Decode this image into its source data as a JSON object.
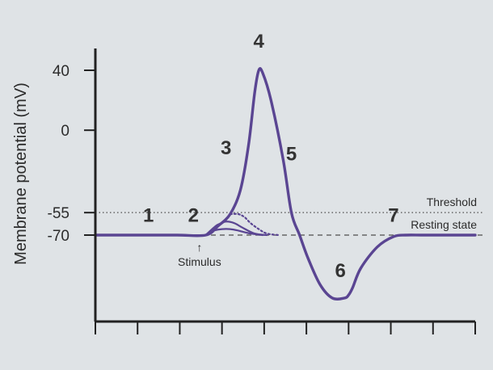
{
  "colors": {
    "background": "#dfe3e6",
    "curve": "#5a4592",
    "axis": "#222222",
    "reference_line": "#666666"
  },
  "chart_data": {
    "type": "line",
    "title": "",
    "xlabel": "",
    "ylabel": "Membrane potential (mV)",
    "yticks": [
      40,
      0,
      -55,
      -70
    ],
    "ytick_labels": [
      "40",
      "0",
      "-55",
      "-70"
    ],
    "ylim": [
      -120,
      60
    ],
    "xlim": [
      0,
      9.3
    ],
    "grid": false,
    "x_tick_count": 10,
    "series": [
      {
        "style": "solid",
        "x": [
          0,
          1,
          2,
          2.7,
          3.0,
          3.3,
          3.55,
          3.75,
          3.9,
          4.0,
          4.1,
          4.3,
          4.6,
          4.8,
          5.0,
          5.2,
          5.5,
          5.8,
          6.1,
          6.2,
          6.3,
          6.5,
          6.9,
          7.3,
          7.6,
          8.0,
          8.5,
          9.3
        ],
        "y": [
          -70,
          -70,
          -70,
          -70,
          -64,
          -56,
          -40,
          -10,
          25,
          40,
          38,
          20,
          -20,
          -55,
          -70,
          -85,
          -103,
          -112,
          -112,
          -110,
          -105,
          -92,
          -78,
          -71,
          -70,
          -70,
          -70,
          -70
        ]
      },
      {
        "style": "dotted",
        "x": [
          3.3,
          3.5,
          3.65,
          3.8,
          4.0,
          4.2,
          4.5
        ],
        "y": [
          -56,
          -56,
          -58,
          -62,
          -66,
          -69,
          -70
        ]
      },
      {
        "style": "solid",
        "x": [
          2.7,
          2.9,
          3.0,
          3.2,
          3.4,
          3.6,
          3.9,
          4.2
        ],
        "y": [
          -70,
          -65,
          -63,
          -61,
          -62,
          -65,
          -69,
          -70
        ]
      },
      {
        "style": "solid",
        "x": [
          2.7,
          2.9,
          3.1,
          3.3,
          3.5,
          3.8,
          4.1
        ],
        "y": [
          -70,
          -67,
          -66,
          -66,
          -67,
          -69,
          -70
        ]
      }
    ],
    "reference_lines": [
      {
        "label": "Threshold",
        "y": -55,
        "style": "dotted"
      },
      {
        "label": "Resting state",
        "y": -70,
        "style": "dashed"
      }
    ],
    "phase_labels": [
      {
        "text": "1",
        "x": 1.3,
        "y": -61
      },
      {
        "text": "2",
        "x": 2.4,
        "y": -61
      },
      {
        "text": "3",
        "x": 3.2,
        "y": -16
      },
      {
        "text": "4",
        "x": 4.0,
        "y": 55
      },
      {
        "text": "5",
        "x": 4.8,
        "y": -20
      },
      {
        "text": "6",
        "x": 6.0,
        "y": -98
      },
      {
        "text": "7",
        "x": 7.3,
        "y": -61
      }
    ],
    "annotations": [
      {
        "text": "Stimulus",
        "x": 2.55,
        "arrow": "↑"
      }
    ]
  }
}
